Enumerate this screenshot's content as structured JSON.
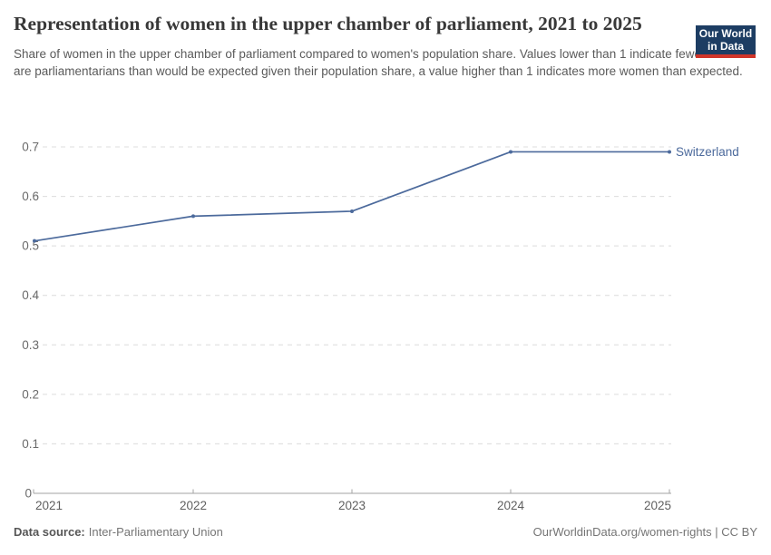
{
  "header": {
    "title": "Representation of women in the upper chamber of parliament, 2021 to 2025",
    "subtitle": "Share of women in the upper chamber of parliament compared to women's population share. Values lower than 1 indicate fewer women are parliamentarians than would be expected given their population share, a value higher than 1 indicates more women than expected.",
    "logo": {
      "line1": "Our World",
      "line2": "in Data",
      "background_color": "#1d3d63",
      "bar_color": "#d0352a"
    }
  },
  "chart_data": {
    "type": "line",
    "title": "Representation of women in the upper chamber of parliament, 2021 to 2025",
    "x": [
      2021,
      2022,
      2023,
      2024,
      2025
    ],
    "series": [
      {
        "name": "Switzerland",
        "values": [
          0.51,
          0.56,
          0.57,
          0.69,
          0.69
        ],
        "color": "#4C6A9C"
      }
    ],
    "ylim": [
      0,
      0.7
    ],
    "yticks": [
      0,
      0.1,
      0.2,
      0.3,
      0.4,
      0.5,
      0.6,
      0.7
    ],
    "ytick_labels": [
      "0",
      "0.1",
      "0.2",
      "0.3",
      "0.4",
      "0.5",
      "0.6",
      "0.7"
    ],
    "xticks": [
      2021,
      2022,
      2023,
      2024,
      2025
    ],
    "xlabel": "",
    "ylabel": "",
    "grid": "horizontal-dashed",
    "legend_position": "end-of-line-label",
    "colors": {
      "gridline": "#dcdcdc",
      "axis": "#a3a3a3",
      "ytick_text": "#6b6b6b",
      "xtick_text": "#5f5f5f"
    }
  },
  "footer": {
    "source_label": "Data source:",
    "source_value": "Inter-Parliamentary Union",
    "credit": "OurWorldinData.org/women-rights | CC BY"
  }
}
